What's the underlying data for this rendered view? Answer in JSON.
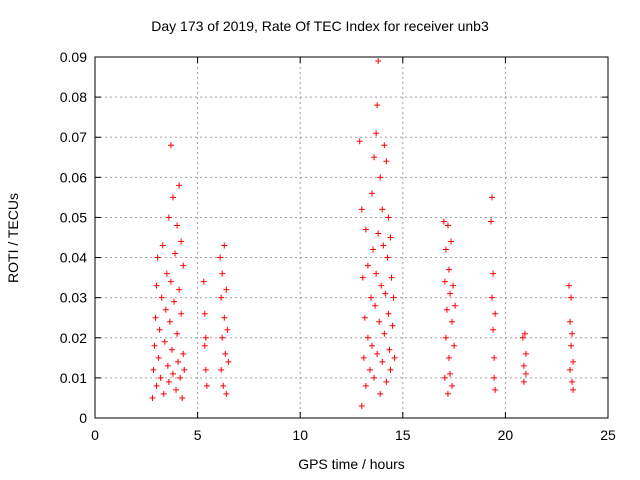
{
  "chart_data": {
    "type": "scatter",
    "title": "Day 173 of 2019, Rate Of TEC Index for receiver unb3",
    "xlabel": "GPS time / hours",
    "ylabel": "ROTI / TECUs",
    "xlim": [
      0,
      25
    ],
    "ylim": [
      0,
      0.09
    ],
    "xticks": [
      "0",
      "5",
      "10",
      "15",
      "20",
      "25"
    ],
    "yticks": [
      "0",
      "0.01",
      "0.02",
      "0.03",
      "0.04",
      "0.05",
      "0.06",
      "0.07",
      "0.08",
      "0.09"
    ],
    "grid": true,
    "marker": "plus",
    "color": "#ff0000",
    "series": [
      {
        "values": [
          [
            2.8,
            0.005
          ],
          [
            2.85,
            0.012
          ],
          [
            2.9,
            0.018
          ],
          [
            2.95,
            0.025
          ],
          [
            3.0,
            0.033
          ],
          [
            3.0,
            0.008
          ],
          [
            3.05,
            0.04
          ],
          [
            3.1,
            0.015
          ],
          [
            3.15,
            0.022
          ],
          [
            3.2,
            0.01
          ],
          [
            3.25,
            0.03
          ],
          [
            3.3,
            0.043
          ],
          [
            3.35,
            0.006
          ],
          [
            3.4,
            0.019
          ],
          [
            3.45,
            0.027
          ],
          [
            3.5,
            0.036
          ],
          [
            3.55,
            0.013
          ],
          [
            3.6,
            0.05
          ],
          [
            3.6,
            0.009
          ],
          [
            3.65,
            0.024
          ],
          [
            3.7,
            0.068
          ],
          [
            3.7,
            0.034
          ],
          [
            3.75,
            0.017
          ],
          [
            3.8,
            0.055
          ],
          [
            3.8,
            0.011
          ],
          [
            3.85,
            0.029
          ],
          [
            3.9,
            0.041
          ],
          [
            3.95,
            0.007
          ],
          [
            4.0,
            0.048
          ],
          [
            4.0,
            0.021
          ],
          [
            4.05,
            0.014
          ],
          [
            4.1,
            0.058
          ],
          [
            4.1,
            0.032
          ],
          [
            4.15,
            0.01
          ],
          [
            4.2,
            0.044
          ],
          [
            4.2,
            0.026
          ],
          [
            4.25,
            0.005
          ],
          [
            4.3,
            0.038
          ],
          [
            4.3,
            0.016
          ],
          [
            4.35,
            0.012
          ],
          [
            5.3,
            0.034
          ],
          [
            5.35,
            0.026
          ],
          [
            5.35,
            0.018
          ],
          [
            5.4,
            0.02
          ],
          [
            5.4,
            0.012
          ],
          [
            5.45,
            0.008
          ],
          [
            6.1,
            0.04
          ],
          [
            6.15,
            0.03
          ],
          [
            6.15,
            0.012
          ],
          [
            6.2,
            0.036
          ],
          [
            6.2,
            0.02
          ],
          [
            6.25,
            0.008
          ],
          [
            6.3,
            0.043
          ],
          [
            6.3,
            0.025
          ],
          [
            6.35,
            0.016
          ],
          [
            6.4,
            0.032
          ],
          [
            6.4,
            0.006
          ],
          [
            6.45,
            0.022
          ],
          [
            6.5,
            0.014
          ],
          [
            12.9,
            0.069
          ],
          [
            13.0,
            0.052
          ],
          [
            13.0,
            0.003
          ],
          [
            13.05,
            0.035
          ],
          [
            13.1,
            0.015
          ],
          [
            13.15,
            0.025
          ],
          [
            13.2,
            0.047
          ],
          [
            13.2,
            0.008
          ],
          [
            13.3,
            0.038
          ],
          [
            13.3,
            0.02
          ],
          [
            13.4,
            0.012
          ],
          [
            13.45,
            0.03
          ],
          [
            13.5,
            0.056
          ],
          [
            13.5,
            0.018
          ],
          [
            13.55,
            0.042
          ],
          [
            13.6,
            0.065
          ],
          [
            13.6,
            0.01
          ],
          [
            13.65,
            0.028
          ],
          [
            13.7,
            0.071
          ],
          [
            13.7,
            0.036
          ],
          [
            13.75,
            0.078
          ],
          [
            13.75,
            0.016
          ],
          [
            13.8,
            0.089
          ],
          [
            13.8,
            0.046
          ],
          [
            13.85,
            0.024
          ],
          [
            13.9,
            0.06
          ],
          [
            13.9,
            0.006
          ],
          [
            13.95,
            0.033
          ],
          [
            14.0,
            0.052
          ],
          [
            14.0,
            0.014
          ],
          [
            14.05,
            0.043
          ],
          [
            14.1,
            0.068
          ],
          [
            14.1,
            0.021
          ],
          [
            14.15,
            0.031
          ],
          [
            14.2,
            0.064
          ],
          [
            14.2,
            0.009
          ],
          [
            14.25,
            0.04
          ],
          [
            14.3,
            0.05
          ],
          [
            14.3,
            0.026
          ],
          [
            14.35,
            0.017
          ],
          [
            14.4,
            0.045
          ],
          [
            14.4,
            0.012
          ],
          [
            14.45,
            0.035
          ],
          [
            14.5,
            0.023
          ],
          [
            14.55,
            0.03
          ],
          [
            14.6,
            0.015
          ],
          [
            17.0,
            0.049
          ],
          [
            17.05,
            0.034
          ],
          [
            17.05,
            0.01
          ],
          [
            17.1,
            0.042
          ],
          [
            17.1,
            0.02
          ],
          [
            17.15,
            0.027
          ],
          [
            17.2,
            0.048
          ],
          [
            17.2,
            0.006
          ],
          [
            17.25,
            0.037
          ],
          [
            17.25,
            0.015
          ],
          [
            17.3,
            0.031
          ],
          [
            17.3,
            0.011
          ],
          [
            17.35,
            0.044
          ],
          [
            17.4,
            0.024
          ],
          [
            17.4,
            0.008
          ],
          [
            17.45,
            0.033
          ],
          [
            17.5,
            0.018
          ],
          [
            17.55,
            0.028
          ],
          [
            19.3,
            0.049
          ],
          [
            19.35,
            0.055
          ],
          [
            19.35,
            0.03
          ],
          [
            19.4,
            0.036
          ],
          [
            19.4,
            0.022
          ],
          [
            19.45,
            0.015
          ],
          [
            19.45,
            0.01
          ],
          [
            19.5,
            0.026
          ],
          [
            19.5,
            0.007
          ],
          [
            20.85,
            0.02
          ],
          [
            20.9,
            0.013
          ],
          [
            20.9,
            0.009
          ],
          [
            20.95,
            0.021
          ],
          [
            21.0,
            0.011
          ],
          [
            21.0,
            0.016
          ],
          [
            23.1,
            0.033
          ],
          [
            23.15,
            0.024
          ],
          [
            23.15,
            0.012
          ],
          [
            23.2,
            0.03
          ],
          [
            23.2,
            0.018
          ],
          [
            23.25,
            0.009
          ],
          [
            23.25,
            0.021
          ],
          [
            23.3,
            0.014
          ],
          [
            23.3,
            0.007
          ]
        ]
      }
    ]
  }
}
